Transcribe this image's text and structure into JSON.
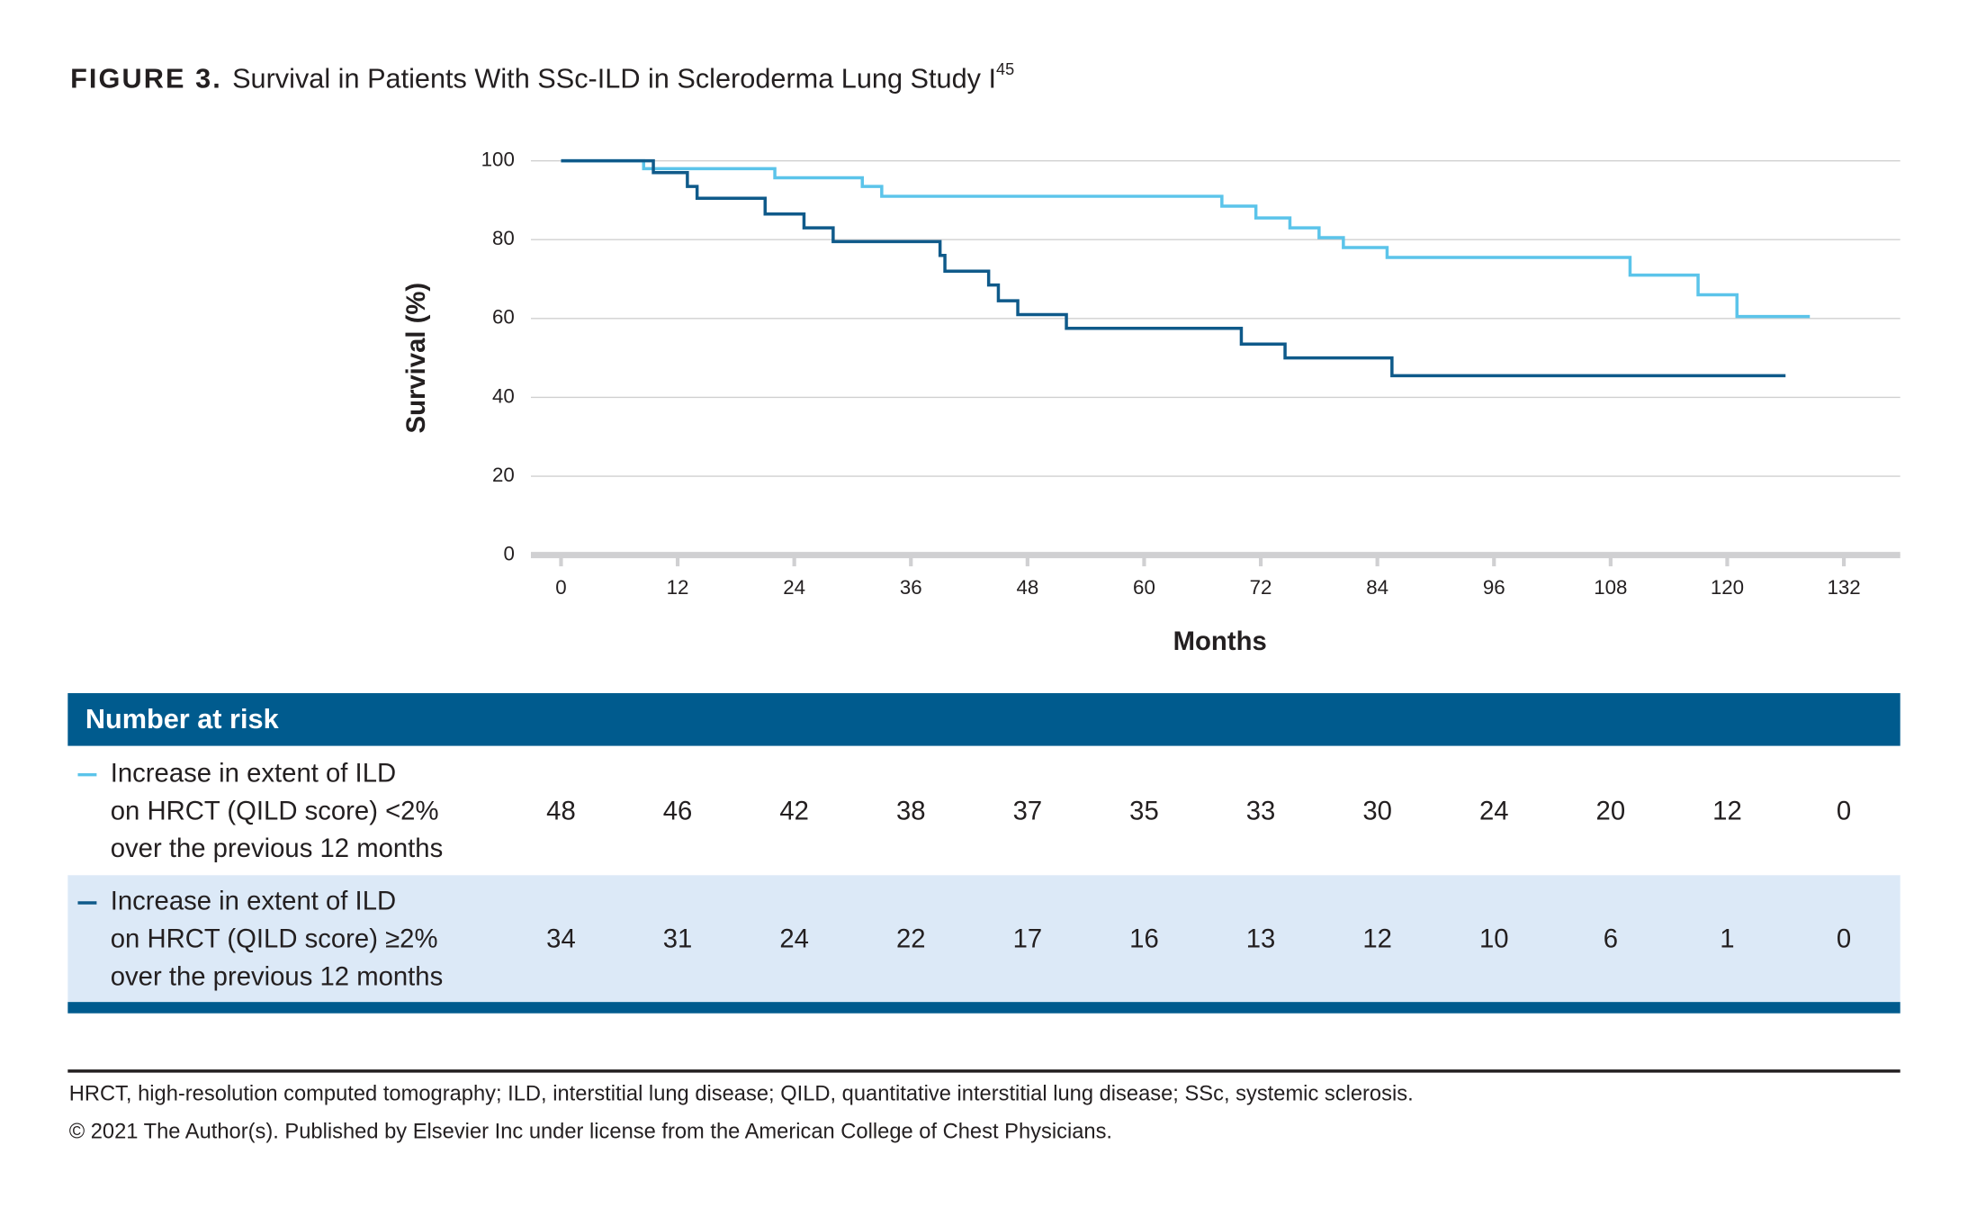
{
  "chart_data": {
    "type": "line",
    "step": true,
    "figure_label": "FIGURE 3.",
    "title": "Survival in Patients With SSc-ILD in Scleroderma Lung Study I",
    "title_superscript": "45",
    "ylabel": "Survival (%)",
    "xlabel": "Months",
    "xlim": [
      -3.1,
      137.8
    ],
    "ylim": [
      0,
      100
    ],
    "xticks": [
      0,
      12,
      24,
      36,
      48,
      60,
      72,
      84,
      96,
      108,
      120,
      132
    ],
    "yticks": [
      0,
      20,
      40,
      60,
      80,
      100
    ],
    "grid": true,
    "risk_table_title": "Number at risk",
    "series": [
      {
        "label_lines": [
          "Increase in extent of ILD",
          "on HRCT (QILD score) <2%",
          "over the previous 12 months"
        ],
        "color": "#5bc4ea",
        "x": [
          0,
          8.5,
          22,
          31,
          33,
          68,
          71.5,
          75,
          78,
          80.5,
          85,
          110,
          117,
          121,
          128.5
        ],
        "values": [
          100,
          98,
          95.7,
          93.5,
          91,
          88.5,
          85.5,
          83,
          80.5,
          78,
          75.5,
          71,
          66,
          60.5,
          60.5
        ],
        "at_risk": [
          48,
          46,
          42,
          38,
          37,
          35,
          33,
          30,
          24,
          20,
          12,
          0
        ]
      },
      {
        "label_lines": [
          "Increase in extent of ILD",
          "on HRCT (QILD score) ≥2%",
          "over the previous 12 months"
        ],
        "color": "#0f5a8a",
        "x": [
          0,
          9.5,
          13,
          14,
          21,
          25,
          28,
          39,
          39.5,
          44,
          45,
          47,
          52,
          70,
          74.5,
          85.5,
          126
        ],
        "values": [
          100,
          97,
          93.5,
          90.5,
          86.5,
          83,
          79.5,
          76,
          72,
          68.5,
          64.5,
          61,
          57.5,
          53.5,
          50,
          45.5,
          45.5
        ],
        "at_risk": [
          34,
          31,
          24,
          22,
          17,
          16,
          13,
          12,
          10,
          6,
          1,
          0
        ]
      }
    ],
    "footnotes": [
      "HRCT, high-resolution computed tomography; ILD, interstitial lung disease; QILD, quantitative interstitial lung disease; SSc, systemic sclerosis.",
      "© 2021 The Author(s). Published by Elsevier Inc under license from the American College of Chest Physicians."
    ]
  }
}
